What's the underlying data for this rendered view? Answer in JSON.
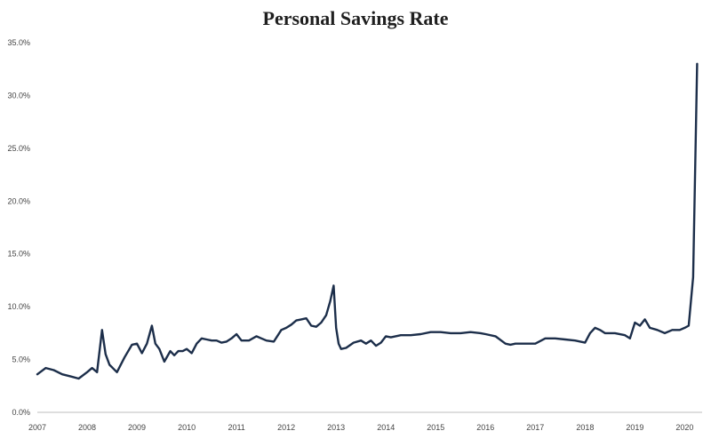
{
  "title": "Personal Savings Rate",
  "chart_data": {
    "type": "line",
    "title": "Personal Savings Rate",
    "xlabel": "",
    "ylabel": "",
    "ylim": [
      0,
      35
    ],
    "xlim": [
      2007,
      2020.35
    ],
    "grid": false,
    "y_ticks": [
      "0.0%",
      "5.0%",
      "10.0%",
      "15.0%",
      "20.0%",
      "25.0%",
      "30.0%",
      "35.0%"
    ],
    "y_tick_values": [
      0,
      5,
      10,
      15,
      20,
      25,
      30,
      35
    ],
    "x_ticks": [
      "2007",
      "2008",
      "2009",
      "2010",
      "2011",
      "2012",
      "2013",
      "2014",
      "2015",
      "2016",
      "2017",
      "2018",
      "2019",
      "2020"
    ],
    "x_tick_values": [
      2007,
      2008,
      2009,
      2010,
      2011,
      2012,
      2013,
      2014,
      2015,
      2016,
      2017,
      2018,
      2019,
      2020
    ],
    "line_color": "#1c2e4a",
    "series": [
      {
        "x": [
          2007.0,
          2007.17,
          2007.33,
          2007.5,
          2007.67,
          2007.83,
          2008.0,
          2008.1,
          2008.2,
          2008.3,
          2008.37,
          2008.45,
          2008.6,
          2008.75,
          2008.9,
          2009.0,
          2009.1,
          2009.2,
          2009.3,
          2009.37,
          2009.45,
          2009.55,
          2009.67,
          2009.75,
          2009.83,
          2009.92,
          2010.0,
          2010.1,
          2010.2,
          2010.3,
          2010.4,
          2010.5,
          2010.6,
          2010.7,
          2010.8,
          2010.9,
          2011.0,
          2011.1,
          2011.25,
          2011.4,
          2011.5,
          2011.6,
          2011.75,
          2011.9,
          2012.0,
          2012.1,
          2012.2,
          2012.3,
          2012.4,
          2012.5,
          2012.6,
          2012.7,
          2012.8,
          2012.88,
          2012.95,
          2013.0,
          2013.05,
          2013.1,
          2013.2,
          2013.35,
          2013.5,
          2013.6,
          2013.7,
          2013.8,
          2013.9,
          2014.0,
          2014.1,
          2014.3,
          2014.5,
          2014.7,
          2014.9,
          2015.0,
          2015.1,
          2015.3,
          2015.5,
          2015.7,
          2015.9,
          2016.0,
          2016.2,
          2016.4,
          2016.5,
          2016.6,
          2016.8,
          2017.0,
          2017.2,
          2017.4,
          2017.6,
          2017.8,
          2018.0,
          2018.1,
          2018.2,
          2018.3,
          2018.4,
          2018.6,
          2018.8,
          2018.9,
          2019.0,
          2019.1,
          2019.2,
          2019.3,
          2019.45,
          2019.6,
          2019.75,
          2019.9,
          2020.0,
          2020.08,
          2020.17,
          2020.25
        ],
        "values": [
          3.6,
          4.2,
          4.0,
          3.6,
          3.4,
          3.2,
          3.8,
          4.2,
          3.8,
          7.8,
          5.5,
          4.5,
          3.8,
          5.2,
          6.4,
          6.5,
          5.6,
          6.5,
          8.2,
          6.5,
          6.0,
          4.8,
          5.8,
          5.4,
          5.8,
          5.8,
          6.0,
          5.6,
          6.5,
          7.0,
          6.9,
          6.8,
          6.8,
          6.6,
          6.7,
          7.0,
          7.4,
          6.8,
          6.8,
          7.2,
          7.0,
          6.8,
          6.7,
          7.8,
          8.0,
          8.3,
          8.7,
          8.8,
          8.9,
          8.2,
          8.1,
          8.5,
          9.2,
          10.5,
          12.0,
          8.0,
          6.5,
          6.0,
          6.1,
          6.6,
          6.8,
          6.5,
          6.8,
          6.3,
          6.6,
          7.2,
          7.1,
          7.3,
          7.3,
          7.4,
          7.6,
          7.6,
          7.6,
          7.5,
          7.5,
          7.6,
          7.5,
          7.4,
          7.2,
          6.5,
          6.4,
          6.5,
          6.5,
          6.5,
          7.0,
          7.0,
          6.9,
          6.8,
          6.6,
          7.5,
          8.0,
          7.8,
          7.5,
          7.5,
          7.3,
          7.0,
          8.5,
          8.2,
          8.8,
          8.0,
          7.8,
          7.5,
          7.8,
          7.8,
          8.0,
          8.2,
          12.8,
          33.0
        ]
      }
    ]
  }
}
